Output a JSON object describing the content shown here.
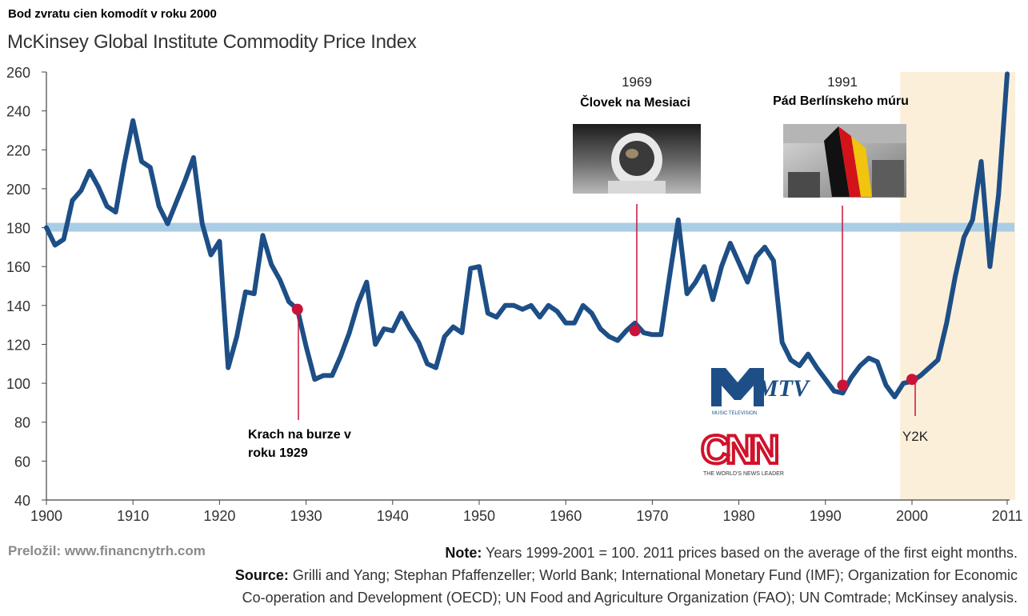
{
  "header": {
    "title_sk": "Bod zvratu cien komodít v roku 2000",
    "title_en": "McKinsey Global Institute Commodity Price Index"
  },
  "footer": {
    "translator": "Preložil: www.financnytrh.com",
    "note_label": "Note:",
    "note_text": " Years 1999-2001 = 100. 2011 prices based on the average of the first eight months.",
    "source_label": "Source:",
    "source_text_1": " Grilli and Yang; Stephan Pfaffenzeller; World Bank; International Monetary Fund (IMF); Organization for Economic",
    "source_text_2": "Co-operation and Development (OECD); UN Food and Agriculture Organization (FAO); UN Comtrade; McKinsey analysis."
  },
  "logos": {
    "mtv_text": "MTV",
    "mtv_tagline": "MUSIC TELEVISION",
    "cnn_text": "CNN",
    "cnn_tagline": "THE WORLD'S NEWS LEADER"
  },
  "chart_data": {
    "type": "line",
    "title": "McKinsey Global Institute Commodity Price Index",
    "xlim": [
      1900,
      2011
    ],
    "ylim": [
      40,
      260
    ],
    "x_ticks": [
      1900,
      1910,
      1920,
      1930,
      1940,
      1950,
      1960,
      1970,
      1980,
      1990,
      2000,
      2011
    ],
    "y_ticks": [
      40,
      60,
      80,
      100,
      120,
      140,
      160,
      180,
      200,
      220,
      240,
      260
    ],
    "grid": false,
    "reference_line": {
      "y": 180,
      "color": "#a9cde4"
    },
    "highlight_band": {
      "x_start": 1999,
      "x_end": 2011,
      "color": "#fcefd9"
    },
    "line_color": "#1d4f86",
    "marker_color": "#c8143a",
    "series": [
      {
        "x": [
          1900,
          1901,
          1902,
          1903,
          1904,
          1905,
          1906,
          1907,
          1908,
          1909,
          1910,
          1911,
          1912,
          1913,
          1914,
          1915,
          1916,
          1917,
          1918,
          1919,
          1920,
          1921,
          1922,
          1923,
          1924,
          1925,
          1926,
          1927,
          1928,
          1929,
          1930,
          1931,
          1932,
          1933,
          1934,
          1935,
          1936,
          1937,
          1938,
          1939,
          1940,
          1941,
          1942,
          1943,
          1944,
          1945,
          1946,
          1947,
          1948,
          1949,
          1950,
          1951,
          1952,
          1953,
          1954,
          1955,
          1956,
          1957,
          1958,
          1959,
          1960,
          1961,
          1962,
          1963,
          1964,
          1965,
          1966,
          1967,
          1968,
          1969,
          1970,
          1971,
          1972,
          1973,
          1974,
          1975,
          1976,
          1977,
          1978,
          1979,
          1980,
          1981,
          1982,
          1983,
          1984,
          1985,
          1986,
          1987,
          1988,
          1989,
          1990,
          1991,
          1992,
          1993,
          1994,
          1995,
          1996,
          1997,
          1998,
          1999,
          2000,
          2001,
          2002,
          2003,
          2004,
          2005,
          2006,
          2007,
          2008,
          2009,
          2010,
          2011
        ],
        "y": [
          180,
          171,
          174,
          194,
          199,
          209,
          201,
          191,
          188,
          213,
          235,
          214,
          211,
          191,
          182,
          193,
          204,
          216,
          182,
          166,
          173,
          108,
          124,
          147,
          146,
          176,
          161,
          153,
          142,
          138,
          119,
          102,
          104,
          104,
          114,
          126,
          141,
          152,
          120,
          128,
          127,
          136,
          128,
          121,
          110,
          108,
          124,
          129,
          126,
          159,
          160,
          136,
          134,
          140,
          140,
          138,
          140,
          134,
          140,
          137,
          131,
          131,
          140,
          136,
          128,
          124,
          122,
          127,
          131,
          126,
          125,
          125,
          155,
          184,
          146,
          152,
          160,
          143,
          160,
          172,
          162,
          152,
          165,
          170,
          163,
          121,
          112,
          109,
          115,
          108,
          102,
          96,
          95,
          103,
          109,
          113,
          111,
          99,
          93,
          100,
          101,
          104,
          108,
          112,
          131,
          155,
          175,
          184,
          214,
          160,
          197,
          259
        ]
      }
    ],
    "annotations": [
      {
        "x": 1929,
        "y": 138,
        "label": "Krach na burze v roku 1929"
      },
      {
        "x": 1968,
        "y": 127,
        "year": "1969",
        "label": "Človek na Mesiaci"
      },
      {
        "x": 1992,
        "y": 99,
        "year": "1991",
        "label": "Pád Berlínskeho múru"
      },
      {
        "x": 2000,
        "y": 102,
        "label": "Y2K"
      }
    ]
  }
}
